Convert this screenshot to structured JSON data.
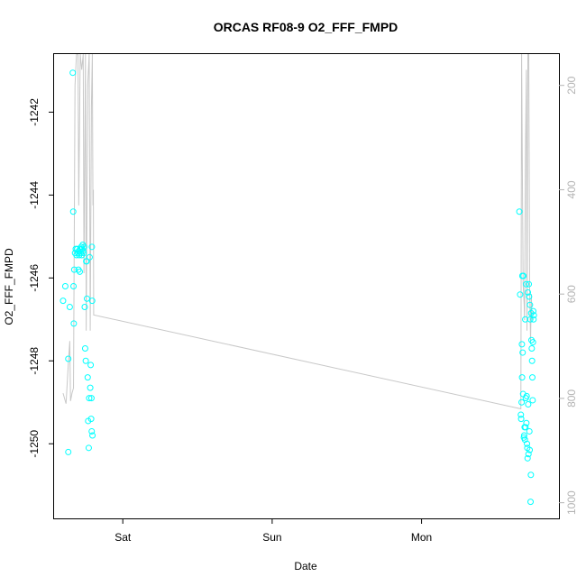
{
  "chart_data": {
    "type": "scatter",
    "title": "ORCAS RF08-9 O2_FFF_FMPD",
    "xlabel": "Date",
    "ylabel": "O2_FFF_FMPD",
    "x_ticks": [
      {
        "label": "Sat",
        "day": 1.0
      },
      {
        "label": "Sun",
        "day": 2.0
      },
      {
        "label": "Mon",
        "day": 3.0
      }
    ],
    "xlim": [
      0.54,
      3.92
    ],
    "ylim": [
      -1251.8,
      -1240.6
    ],
    "y_ticks": [
      -1250,
      -1248,
      -1246,
      -1244,
      -1242
    ],
    "y_tick_labels": [
      "-1250",
      "-1248",
      "-1246",
      "-1244",
      "-1242"
    ],
    "y2_ticks": [
      200,
      400,
      600,
      800,
      1000
    ],
    "y2_tick_labels": [
      "200",
      "400",
      "600",
      "800",
      "1000"
    ],
    "y2_lim": [
      1030,
      140
    ],
    "grid": false,
    "colors": {
      "points": "#00ffff",
      "secondary_line": "#c8c8c8",
      "secondary_axis": "#b3b3b3",
      "axes": "#000000"
    },
    "series": [
      {
        "type": "scatter",
        "points": [
          {
            "x": 0.6,
            "y": -1246.55
          },
          {
            "x": 0.615,
            "y": -1246.2
          },
          {
            "x": 0.635,
            "y": -1250.2
          },
          {
            "x": 0.645,
            "y": -1246.7
          },
          {
            "x": 0.635,
            "y": -1247.95
          },
          {
            "x": 0.665,
            "y": -1241.05
          },
          {
            "x": 0.668,
            "y": -1244.4
          },
          {
            "x": 0.67,
            "y": -1246.2
          },
          {
            "x": 0.672,
            "y": -1247.1
          },
          {
            "x": 0.675,
            "y": -1245.8
          },
          {
            "x": 0.68,
            "y": -1245.4
          },
          {
            "x": 0.685,
            "y": -1245.3
          },
          {
            "x": 0.69,
            "y": -1245.45
          },
          {
            "x": 0.695,
            "y": -1245.3
          },
          {
            "x": 0.7,
            "y": -1245.4
          },
          {
            "x": 0.703,
            "y": -1245.8
          },
          {
            "x": 0.705,
            "y": -1245.35
          },
          {
            "x": 0.708,
            "y": -1245.45
          },
          {
            "x": 0.712,
            "y": -1245.85
          },
          {
            "x": 0.715,
            "y": -1245.3
          },
          {
            "x": 0.718,
            "y": -1245.4
          },
          {
            "x": 0.722,
            "y": -1245.25
          },
          {
            "x": 0.725,
            "y": -1245.45
          },
          {
            "x": 0.728,
            "y": -1245.3
          },
          {
            "x": 0.732,
            "y": -1245.2
          },
          {
            "x": 0.735,
            "y": -1245.35
          },
          {
            "x": 0.738,
            "y": -1245.4
          },
          {
            "x": 0.742,
            "y": -1245.25
          },
          {
            "x": 0.745,
            "y": -1246.7
          },
          {
            "x": 0.748,
            "y": -1247.7
          },
          {
            "x": 0.752,
            "y": -1248.0
          },
          {
            "x": 0.755,
            "y": -1245.6
          },
          {
            "x": 0.758,
            "y": -1245.6
          },
          {
            "x": 0.76,
            "y": -1246.5
          },
          {
            "x": 0.765,
            "y": -1248.4
          },
          {
            "x": 0.768,
            "y": -1249.45
          },
          {
            "x": 0.772,
            "y": -1250.1
          },
          {
            "x": 0.775,
            "y": -1248.9
          },
          {
            "x": 0.778,
            "y": -1245.5
          },
          {
            "x": 0.782,
            "y": -1248.65
          },
          {
            "x": 0.785,
            "y": -1248.1
          },
          {
            "x": 0.788,
            "y": -1249.4
          },
          {
            "x": 0.79,
            "y": -1248.9
          },
          {
            "x": 0.792,
            "y": -1249.7
          },
          {
            "x": 0.793,
            "y": -1245.25
          },
          {
            "x": 0.795,
            "y": -1246.55
          },
          {
            "x": 0.797,
            "y": -1249.8
          },
          {
            "x": 3.655,
            "y": -1244.4
          },
          {
            "x": 3.66,
            "y": -1246.4
          },
          {
            "x": 3.665,
            "y": -1249.3
          },
          {
            "x": 3.667,
            "y": -1249.4
          },
          {
            "x": 3.67,
            "y": -1249.0
          },
          {
            "x": 3.672,
            "y": -1247.6
          },
          {
            "x": 3.673,
            "y": -1248.4
          },
          {
            "x": 3.675,
            "y": -1245.95
          },
          {
            "x": 3.677,
            "y": -1247.8
          },
          {
            "x": 3.68,
            "y": -1248.8
          },
          {
            "x": 3.682,
            "y": -1245.95
          },
          {
            "x": 3.685,
            "y": -1249.85
          },
          {
            "x": 3.687,
            "y": -1249.8
          },
          {
            "x": 3.69,
            "y": -1249.6
          },
          {
            "x": 3.692,
            "y": -1249.9
          },
          {
            "x": 3.694,
            "y": -1247.0
          },
          {
            "x": 3.696,
            "y": -1249.6
          },
          {
            "x": 3.698,
            "y": -1248.9
          },
          {
            "x": 3.7,
            "y": -1246.15
          },
          {
            "x": 3.702,
            "y": -1249.5
          },
          {
            "x": 3.704,
            "y": -1248.85
          },
          {
            "x": 3.706,
            "y": -1250.0
          },
          {
            "x": 3.708,
            "y": -1250.1
          },
          {
            "x": 3.71,
            "y": -1250.35
          },
          {
            "x": 3.712,
            "y": -1246.35
          },
          {
            "x": 3.714,
            "y": -1249.05
          },
          {
            "x": 3.716,
            "y": -1250.25
          },
          {
            "x": 3.718,
            "y": -1246.15
          },
          {
            "x": 3.72,
            "y": -1246.45
          },
          {
            "x": 3.722,
            "y": -1249.7
          },
          {
            "x": 3.724,
            "y": -1250.15
          },
          {
            "x": 3.726,
            "y": -1246.65
          },
          {
            "x": 3.728,
            "y": -1247.0
          },
          {
            "x": 3.73,
            "y": -1251.4
          },
          {
            "x": 3.732,
            "y": -1250.75
          },
          {
            "x": 3.734,
            "y": -1246.85
          },
          {
            "x": 3.736,
            "y": -1247.5
          },
          {
            "x": 3.738,
            "y": -1247.7
          },
          {
            "x": 3.74,
            "y": -1248.0
          },
          {
            "x": 3.742,
            "y": -1248.4
          },
          {
            "x": 3.744,
            "y": -1248.95
          },
          {
            "x": 3.746,
            "y": -1247.55
          },
          {
            "x": 3.748,
            "y": -1246.8
          },
          {
            "x": 3.75,
            "y": -1247.0
          },
          {
            "x": 3.752,
            "y": -1246.9
          }
        ]
      },
      {
        "type": "line",
        "axis": "right",
        "points": [
          {
            "x": 0.6,
            "y": 790
          },
          {
            "x": 0.62,
            "y": 810
          },
          {
            "x": 0.635,
            "y": 735
          },
          {
            "x": 0.645,
            "y": 690
          },
          {
            "x": 0.65,
            "y": 805
          },
          {
            "x": 0.66,
            "y": 790
          },
          {
            "x": 0.67,
            "y": 780
          },
          {
            "x": 0.68,
            "y": 200
          },
          {
            "x": 0.69,
            "y": 140
          },
          {
            "x": 0.7,
            "y": 140
          },
          {
            "x": 0.705,
            "y": 430
          },
          {
            "x": 0.715,
            "y": 140
          },
          {
            "x": 0.725,
            "y": 170
          },
          {
            "x": 0.735,
            "y": 140
          },
          {
            "x": 0.74,
            "y": 560
          },
          {
            "x": 0.75,
            "y": 140
          },
          {
            "x": 0.755,
            "y": 670
          },
          {
            "x": 0.765,
            "y": 200
          },
          {
            "x": 0.775,
            "y": 140
          },
          {
            "x": 0.782,
            "y": 670
          },
          {
            "x": 0.79,
            "y": 240
          },
          {
            "x": 0.796,
            "y": 140
          },
          {
            "x": 0.8,
            "y": 430
          },
          {
            "x": 0.803,
            "y": 400
          },
          {
            "x": 0.805,
            "y": 640
          },
          {
            "x": 3.665,
            "y": 820
          },
          {
            "x": 3.67,
            "y": 140
          },
          {
            "x": 3.68,
            "y": 580
          },
          {
            "x": 3.687,
            "y": 620
          },
          {
            "x": 3.69,
            "y": 650
          },
          {
            "x": 3.695,
            "y": 350
          },
          {
            "x": 3.702,
            "y": 170
          },
          {
            "x": 3.706,
            "y": 670
          },
          {
            "x": 3.712,
            "y": 140
          },
          {
            "x": 3.718,
            "y": 140
          },
          {
            "x": 3.724,
            "y": 600
          },
          {
            "x": 3.73,
            "y": 690
          },
          {
            "x": 3.735,
            "y": 600
          },
          {
            "x": 3.74,
            "y": 650
          }
        ]
      }
    ]
  }
}
